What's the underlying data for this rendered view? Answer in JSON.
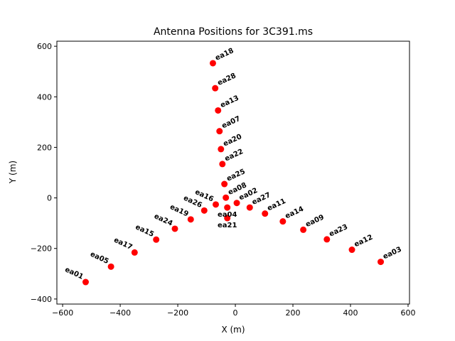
{
  "chart_data": {
    "type": "scatter",
    "title": "Antenna Positions for 3C391.ms",
    "xlabel": "X (m)",
    "ylabel": "Y (m)",
    "xlim": [
      -620,
      605
    ],
    "ylim": [
      -420,
      620
    ],
    "xticks": [
      -600,
      -400,
      -200,
      0,
      200,
      400,
      600
    ],
    "yticks": [
      -400,
      -200,
      0,
      200,
      400,
      600
    ],
    "marker_color": "#ff0000",
    "grid": false,
    "points": [
      {
        "name": "ea18",
        "x": -78,
        "y": 533,
        "label_style": "rotated"
      },
      {
        "name": "ea28",
        "x": -70,
        "y": 434,
        "label_style": "rotated"
      },
      {
        "name": "ea13",
        "x": -60,
        "y": 346,
        "label_style": "rotated"
      },
      {
        "name": "ea07",
        "x": -55,
        "y": 264,
        "label_style": "rotated"
      },
      {
        "name": "ea20",
        "x": -50,
        "y": 193,
        "label_style": "rotated"
      },
      {
        "name": "ea22",
        "x": -45,
        "y": 134,
        "label_style": "rotated"
      },
      {
        "name": "ea25",
        "x": -38,
        "y": 55,
        "label_style": "rotated"
      },
      {
        "name": "ea08",
        "x": -33,
        "y": 1,
        "label_style": "rotated"
      },
      {
        "name": "ea04",
        "x": -28,
        "y": -38,
        "label_style": "below"
      },
      {
        "name": "ea21",
        "x": -28,
        "y": -80,
        "label_style": "below"
      },
      {
        "name": "ea02",
        "x": 5,
        "y": -20,
        "label_style": "rotated"
      },
      {
        "name": "ea27",
        "x": 50,
        "y": -38,
        "label_style": "rotated"
      },
      {
        "name": "ea11",
        "x": 103,
        "y": -62,
        "label_style": "rotated"
      },
      {
        "name": "ea14",
        "x": 165,
        "y": -93,
        "label_style": "rotated"
      },
      {
        "name": "ea09",
        "x": 236,
        "y": -126,
        "label_style": "rotated"
      },
      {
        "name": "ea23",
        "x": 318,
        "y": -164,
        "label_style": "rotated"
      },
      {
        "name": "ea12",
        "x": 405,
        "y": -205,
        "label_style": "rotated"
      },
      {
        "name": "ea03",
        "x": 505,
        "y": -253,
        "label_style": "rotated"
      },
      {
        "name": "ea16",
        "x": -68,
        "y": -26,
        "label_style": "left"
      },
      {
        "name": "ea26",
        "x": -108,
        "y": -50,
        "label_style": "left"
      },
      {
        "name": "ea19",
        "x": -155,
        "y": -85,
        "label_style": "left"
      },
      {
        "name": "ea24",
        "x": -210,
        "y": -122,
        "label_style": "left"
      },
      {
        "name": "ea15",
        "x": -275,
        "y": -165,
        "label_style": "left"
      },
      {
        "name": "ea17",
        "x": -350,
        "y": -216,
        "label_style": "left"
      },
      {
        "name": "ea05",
        "x": -432,
        "y": -272,
        "label_style": "left"
      },
      {
        "name": "ea01",
        "x": -520,
        "y": -333,
        "label_style": "left"
      }
    ]
  }
}
